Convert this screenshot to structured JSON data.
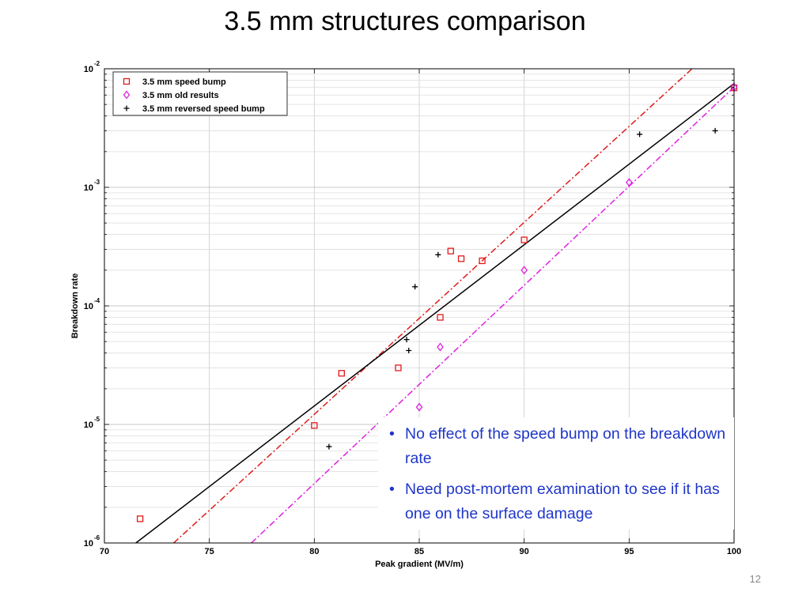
{
  "slide": {
    "title": "3.5 mm structures comparison",
    "page_number": "12",
    "bullets": [
      "No effect of the speed bump on the breakdown rate",
      "Need  post-mortem examination to see if it has one on the surface damage"
    ]
  },
  "chart_data": {
    "type": "scatter",
    "xlabel": "Peak gradient (MV/m)",
    "ylabel": "Breakdown rate",
    "xlim": [
      70,
      100
    ],
    "ylim": [
      1e-06,
      0.01
    ],
    "yscale": "log",
    "grid": true,
    "legend_placement": "top-left",
    "x_ticks": [
      70,
      75,
      80,
      85,
      90,
      95,
      100
    ],
    "y_ticks": [
      {
        "base": "10",
        "exp": "-6",
        "value": 1e-06
      },
      {
        "base": "10",
        "exp": "-5",
        "value": 1e-05
      },
      {
        "base": "10",
        "exp": "-4",
        "value": 0.0001
      },
      {
        "base": "10",
        "exp": "-3",
        "value": 0.001
      },
      {
        "base": "10",
        "exp": "-2",
        "value": 0.01
      }
    ],
    "series": [
      {
        "name": "3.5 mm speed bump",
        "marker": "square",
        "color": "#e01b1b",
        "points": [
          [
            71.7,
            1.6e-06
          ],
          [
            80.0,
            9.8e-06
          ],
          [
            81.3,
            2.7e-05
          ],
          [
            84.0,
            3e-05
          ],
          [
            86.0,
            8e-05
          ],
          [
            86.5,
            0.00029
          ],
          [
            87.0,
            0.00025
          ],
          [
            88.0,
            0.00024
          ],
          [
            90.0,
            0.00036
          ],
          [
            100.0,
            0.0069
          ]
        ],
        "fit": {
          "color": "#e01b1b",
          "style": "dashdot",
          "points": [
            [
              73.3,
              1e-06
            ],
            [
              98.0,
              0.01
            ]
          ]
        }
      },
      {
        "name": "3.5 mm old results",
        "marker": "diamond",
        "color": "#e020e0",
        "points": [
          [
            85.0,
            1.4e-05
          ],
          [
            86.0,
            4.5e-05
          ],
          [
            90.0,
            0.0002
          ],
          [
            95.0,
            0.0011
          ],
          [
            100.0,
            0.007
          ]
        ],
        "fit": {
          "color": "#e020e0",
          "style": "dashdot",
          "points": [
            [
              77.0,
              1e-06
            ],
            [
              100.0,
              0.007
            ]
          ]
        }
      },
      {
        "name": "3.5 mm reversed speed bump",
        "marker": "plus",
        "color": "#000000",
        "points": [
          [
            80.7,
            6.5e-06
          ],
          [
            84.4,
            5.2e-05
          ],
          [
            84.5,
            4.2e-05
          ],
          [
            84.8,
            0.000145
          ],
          [
            85.9,
            0.00027
          ],
          [
            95.5,
            0.0028
          ],
          [
            99.1,
            0.003
          ]
        ],
        "fit": null
      }
    ],
    "overall_fit": {
      "color": "#000000",
      "style": "solid",
      "points": [
        [
          71.5,
          1e-06
        ],
        [
          100.0,
          0.0075
        ]
      ]
    }
  }
}
